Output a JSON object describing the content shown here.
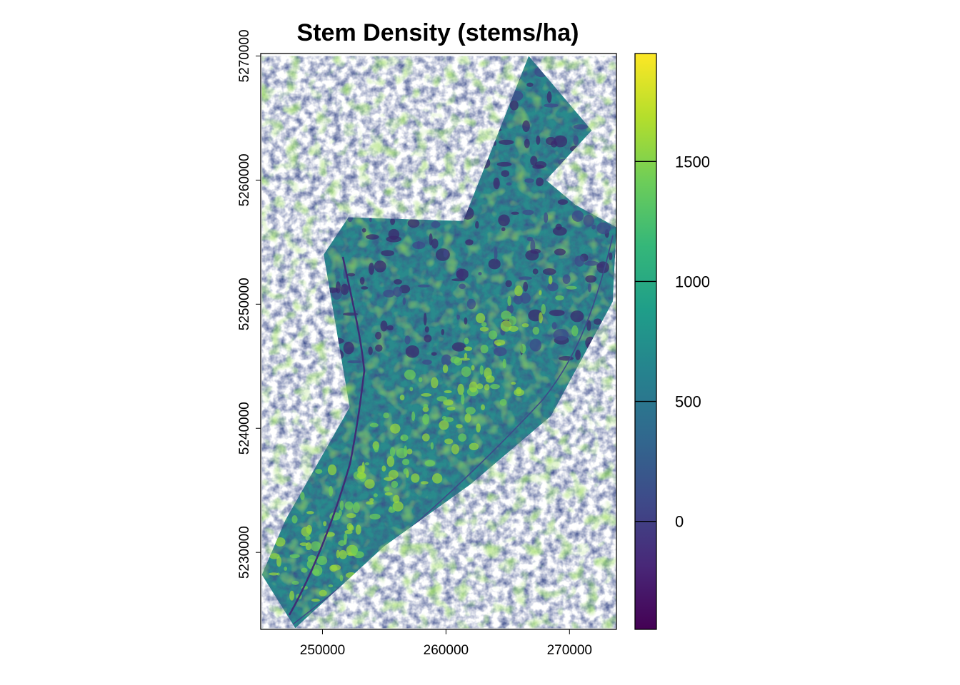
{
  "chart_data": {
    "type": "heatmap",
    "title": "Stem Density (stems/ha)",
    "xlabel": "",
    "ylabel": "",
    "x_ticks": [
      250000,
      260000,
      270000
    ],
    "x_tick_labels": [
      "250000",
      "260000",
      "270000"
    ],
    "y_ticks": [
      5230000,
      5240000,
      5250000,
      5260000,
      5270000
    ],
    "y_tick_labels": [
      "5230000",
      "5240000",
      "5250000",
      "5260000",
      "5270000"
    ],
    "xlim": [
      245000,
      273800
    ],
    "ylim": [
      5223800,
      5270200
    ],
    "colorbar": {
      "range": [
        -450,
        1950
      ],
      "ticks": [
        0,
        500,
        1000,
        1500
      ],
      "tick_labels": [
        "0",
        "500",
        "1000",
        "1500"
      ],
      "palette": [
        "#440154",
        "#482878",
        "#3E4A89",
        "#31688E",
        "#26828E",
        "#1F9E89",
        "#35B779",
        "#6DCD59",
        "#B4DE2C",
        "#FDE725"
      ]
    },
    "study_area_outline": [
      [
        245100,
        5228200
      ],
      [
        247800,
        5223900
      ],
      [
        255000,
        5230500
      ],
      [
        262000,
        5235500
      ],
      [
        268500,
        5241000
      ],
      [
        273500,
        5250200
      ],
      [
        273800,
        5256200
      ],
      [
        270500,
        5258000
      ],
      [
        268100,
        5260000
      ],
      [
        271800,
        5264000
      ],
      [
        266700,
        5270000
      ],
      [
        261400,
        5256700
      ],
      [
        252100,
        5257000
      ],
      [
        250100,
        5254000
      ],
      [
        252200,
        5241700
      ],
      [
        247000,
        5232600
      ],
      [
        245100,
        5228200
      ]
    ],
    "grid": false,
    "legend_position": "right"
  }
}
